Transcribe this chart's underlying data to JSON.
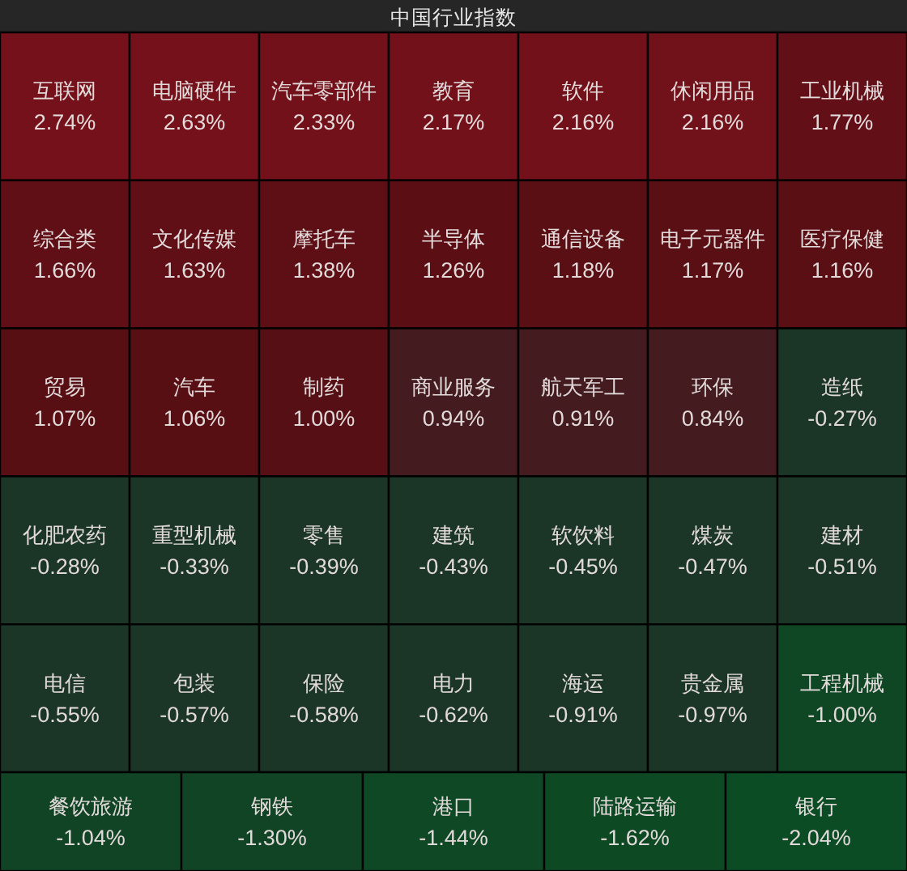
{
  "chart_data": {
    "type": "other",
    "title": "中国行业指数",
    "categories": [
      "互联网",
      "电脑硬件",
      "汽车零部件",
      "教育",
      "软件",
      "休闲用品",
      "工业机械",
      "综合类",
      "文化传媒",
      "摩托车",
      "半导体",
      "通信设备",
      "电子元器件",
      "医疗保健",
      "贸易",
      "汽车",
      "制药",
      "商业服务",
      "航天军工",
      "环保",
      "造纸",
      "化肥农药",
      "重型机械",
      "零售",
      "建筑",
      "软饮料",
      "煤炭",
      "建材",
      "电信",
      "包装",
      "保险",
      "电力",
      "海运",
      "贵金属",
      "工程机械",
      "餐饮旅游",
      "钢铁",
      "港口",
      "陆路运输",
      "银行"
    ],
    "values": [
      2.74,
      2.63,
      2.33,
      2.17,
      2.16,
      2.16,
      1.77,
      1.66,
      1.63,
      1.38,
      1.26,
      1.18,
      1.17,
      1.16,
      1.07,
      1.06,
      1.0,
      0.94,
      0.91,
      0.84,
      -0.27,
      -0.28,
      -0.33,
      -0.39,
      -0.43,
      -0.45,
      -0.47,
      -0.51,
      -0.55,
      -0.57,
      -0.58,
      -0.62,
      -0.91,
      -0.97,
      -1.0,
      -1.04,
      -1.3,
      -1.44,
      -1.62,
      -2.04
    ],
    "value_labels": [
      "2.74%",
      "2.63%",
      "2.33%",
      "2.17%",
      "2.16%",
      "2.16%",
      "1.77%",
      "1.66%",
      "1.63%",
      "1.38%",
      "1.26%",
      "1.18%",
      "1.17%",
      "1.16%",
      "1.07%",
      "1.06%",
      "1.00%",
      "0.94%",
      "0.91%",
      "0.84%",
      "-0.27%",
      "-0.28%",
      "-0.33%",
      "-0.39%",
      "-0.43%",
      "-0.45%",
      "-0.47%",
      "-0.51%",
      "-0.55%",
      "-0.57%",
      "-0.58%",
      "-0.62%",
      "-0.91%",
      "-0.97%",
      "-1.00%",
      "-1.04%",
      "-1.30%",
      "-1.44%",
      "-1.62%",
      "-2.04%"
    ],
    "colors": [
      "#74111a",
      "#74111a",
      "#72111a",
      "#72111a",
      "#72111a",
      "#71111a",
      "#620f17",
      "#600f16",
      "#600f16",
      "#5d0f15",
      "#5b0f15",
      "#5a0f15",
      "#5a0f15",
      "#5a0f15",
      "#570f14",
      "#570f14",
      "#560f14",
      "#441b1f",
      "#441b1f",
      "#441b1f",
      "#1b3527",
      "#1b3527",
      "#1b3527",
      "#1b3527",
      "#1b3527",
      "#1b3527",
      "#1b3527",
      "#1b3527",
      "#1b3527",
      "#1b3527",
      "#1b3527",
      "#1b3527",
      "#1b3527",
      "#1b3527",
      "#0f4623",
      "#114424",
      "#114424",
      "#0f4824",
      "#0d4a24",
      "#0c4c25"
    ]
  }
}
